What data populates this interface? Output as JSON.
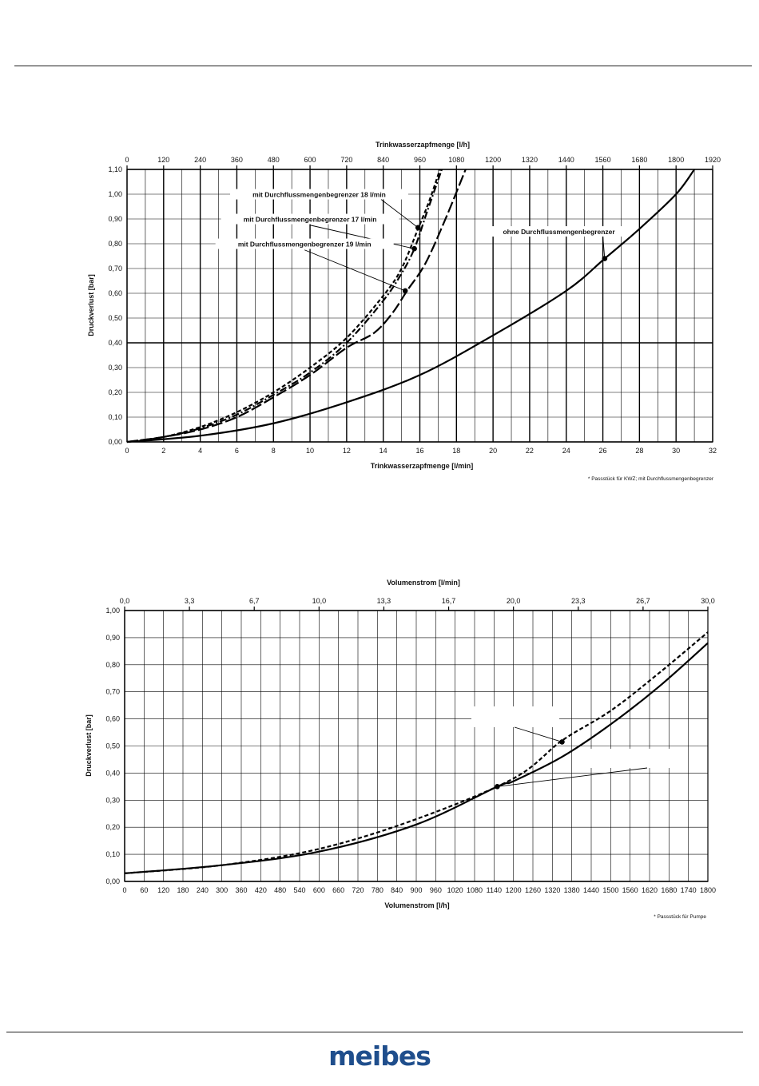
{
  "brand": {
    "name": "meibes",
    "color": "#1f4e8c"
  },
  "chart_data": [
    {
      "type": "line",
      "xlabel": "Trinkwasserzapfmenge  [l/min]",
      "x2label": "Trinkwasserzapfmenge  [l/h]",
      "ylabel": "Druckverlust  [bar]",
      "xlim": [
        0,
        32
      ],
      "ylim": [
        0,
        1.1
      ],
      "grid": true,
      "x_ticks": [
        "0",
        "2",
        "4",
        "6",
        "8",
        "10",
        "12",
        "14",
        "16",
        "18",
        "20",
        "22",
        "24",
        "26",
        "28",
        "30",
        "32"
      ],
      "x2_ticks": [
        "0",
        "120",
        "240",
        "360",
        "480",
        "600",
        "720",
        "840",
        "960",
        "1080",
        "1200",
        "1320",
        "1440",
        "1560",
        "1680",
        "1800",
        "1920"
      ],
      "y_ticks": [
        "0,00",
        "0,10",
        "0,20",
        "0,30",
        "0,40",
        "0,50",
        "0,60",
        "0,70",
        "0,80",
        "0,90",
        "1,00",
        "1,10"
      ],
      "footnote": "* Passstück für KWZ; mit Durchflussmengenbegrenzer",
      "series": [
        {
          "name": "mit Durchflussmengenbegrenzer  18 l/min",
          "style": "dashed",
          "x": [
            0,
            2,
            4,
            6,
            8,
            10,
            12,
            14,
            15,
            15.9,
            16.5,
            17.1
          ],
          "y": [
            0,
            0.02,
            0.06,
            0.12,
            0.2,
            0.3,
            0.42,
            0.59,
            0.7,
            0.86,
            0.97,
            1.1
          ],
          "marker": {
            "x": 15.9,
            "y": 0.865
          },
          "label": {
            "x": 10.5,
            "y": 0.995
          }
        },
        {
          "name": "mit Durchflussmengenbegrenzer  17 l/min",
          "style": "dashdot",
          "x": [
            0,
            2,
            4,
            6,
            8,
            10,
            12,
            14,
            15,
            15.7,
            16.4,
            17.2
          ],
          "y": [
            0,
            0.02,
            0.055,
            0.11,
            0.19,
            0.28,
            0.4,
            0.57,
            0.68,
            0.78,
            0.93,
            1.1
          ],
          "marker": {
            "x": 15.7,
            "y": 0.78
          },
          "label": {
            "x": 10.0,
            "y": 0.895
          },
          "leader_start": {
            "x": 10.0,
            "y": 0.875
          }
        },
        {
          "name": "mit Durchflussmengenbegrenzer  19 l/min",
          "style": "longdash",
          "x": [
            0,
            2,
            4,
            6,
            8,
            10,
            12,
            13.5,
            14.5,
            15.3,
            16.3,
            17.4,
            18.5
          ],
          "y": [
            0,
            0.02,
            0.05,
            0.1,
            0.18,
            0.27,
            0.38,
            0.44,
            0.52,
            0.61,
            0.72,
            0.9,
            1.1
          ],
          "marker": {
            "x": 15.2,
            "y": 0.61
          },
          "label": {
            "x": 9.7,
            "y": 0.795
          },
          "leader_start": {
            "x": 9.7,
            "y": 0.775
          }
        },
        {
          "name": "ohne Durchflussmengenbegrenzer",
          "style": "solid",
          "x": [
            0,
            4,
            8,
            12,
            16,
            20,
            24,
            26.1,
            28,
            30,
            31
          ],
          "y": [
            0,
            0.025,
            0.075,
            0.16,
            0.27,
            0.43,
            0.61,
            0.74,
            0.86,
            1.0,
            1.1
          ],
          "marker": {
            "x": 26.1,
            "y": 0.74
          },
          "label": {
            "x": 23.6,
            "y": 0.845
          }
        }
      ]
    },
    {
      "type": "line",
      "xlabel": "Volumenstrom  [l/h]",
      "x2label": "Volumenstrom  [l/min]",
      "ylabel": "Druckverlust  [bar]",
      "xlim": [
        0,
        1800
      ],
      "ylim": [
        0,
        1.0
      ],
      "grid": true,
      "x_ticks": [
        "0",
        "60",
        "120",
        "180",
        "240",
        "300",
        "360",
        "420",
        "480",
        "540",
        "600",
        "660",
        "720",
        "780",
        "840",
        "900",
        "960",
        "1020",
        "1080",
        "1140",
        "1200",
        "1260",
        "1320",
        "1380",
        "1440",
        "1500",
        "1560",
        "1620",
        "1680",
        "1740",
        "1800"
      ],
      "x2_ticks": [
        "0,0",
        "3,3",
        "6,7",
        "10,0",
        "13,3",
        "16,7",
        "20,0",
        "23,3",
        "26,7",
        "30,0"
      ],
      "y_ticks": [
        "0,00",
        "0,10",
        "0,20",
        "0,30",
        "0,40",
        "0,50",
        "0,60",
        "0,70",
        "0,80",
        "0,90",
        "1,00"
      ],
      "footnote": "* Passstück für Pumpe",
      "series": [
        {
          "style": "dashed",
          "x": [
            0,
            300,
            600,
            900,
            1200,
            1350,
            1500,
            1650,
            1800
          ],
          "y": [
            0.03,
            0.06,
            0.12,
            0.23,
            0.38,
            0.52,
            0.63,
            0.77,
            0.92
          ],
          "marker": {
            "x": 1350,
            "y": 0.515
          }
        },
        {
          "style": "solid",
          "x": [
            0,
            300,
            600,
            900,
            1150,
            1200,
            1350,
            1500,
            1650,
            1800
          ],
          "y": [
            0.03,
            0.06,
            0.11,
            0.21,
            0.35,
            0.37,
            0.46,
            0.58,
            0.72,
            0.88
          ],
          "marker": {
            "x": 1150,
            "y": 0.35
          }
        }
      ]
    }
  ]
}
